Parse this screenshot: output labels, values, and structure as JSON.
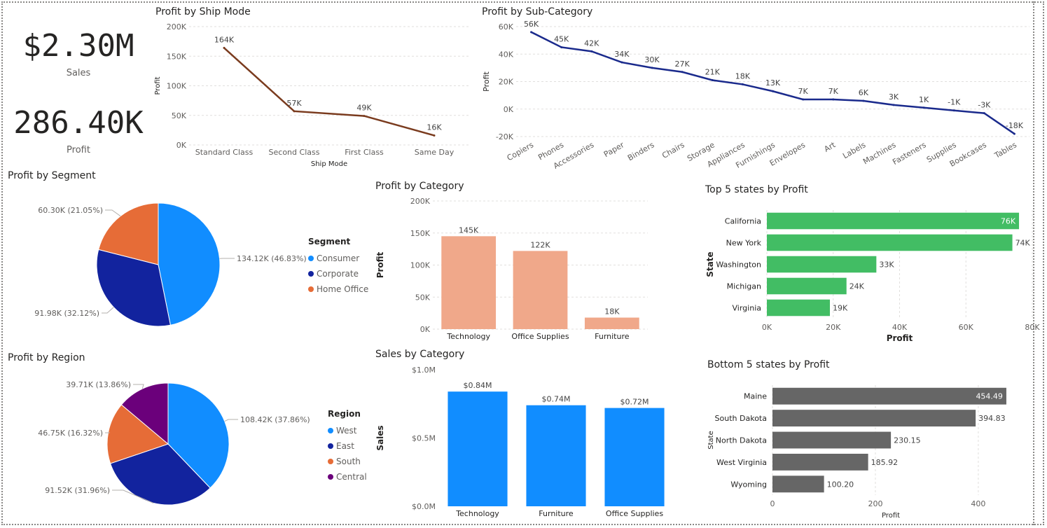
{
  "kpis": {
    "sales_value": "$2.30M",
    "sales_label": "Sales",
    "profit_value": "286.40K",
    "profit_label": "Profit"
  },
  "titles": {
    "ship_mode": "Profit by Ship Mode",
    "sub_category": "Profit by Sub-Category",
    "segment": "Profit by Segment",
    "category": "Profit by Category",
    "top5": "Top 5 states by Profit",
    "region": "Profit by Region",
    "sales_category": "Sales by Category",
    "bottom5": "Bottom 5 states by Profit"
  },
  "colors": {
    "ship_line": "#7a3b1e",
    "sub_line": "#1a2a8c",
    "category_bar": "#f0a88a",
    "top5_bar": "#42bd64",
    "sales_bar": "#118dff",
    "bottom5_bar": "#666666",
    "consumer": "#118dff",
    "corporate": "#12239e",
    "home_office": "#e66c37",
    "west": "#118dff",
    "east": "#12239e",
    "south": "#e66c37",
    "central": "#6b007b"
  },
  "chart_data": [
    {
      "id": "ship_mode",
      "type": "line",
      "xlabel": "Ship Mode",
      "ylabel": "Profit",
      "categories": [
        "Standard Class",
        "Second Class",
        "First Class",
        "Same Day"
      ],
      "values": [
        164000,
        57000,
        49000,
        16000
      ],
      "labels": [
        "164K",
        "57K",
        "49K",
        "16K"
      ],
      "ylim": [
        0,
        200000
      ],
      "yticks": [
        "0K",
        "50K",
        "100K",
        "150K",
        "200K"
      ]
    },
    {
      "id": "sub_category",
      "type": "line",
      "xlabel": "",
      "ylabel": "Profit",
      "categories": [
        "Copiers",
        "Phones",
        "Accessories",
        "Paper",
        "Binders",
        "Chairs",
        "Storage",
        "Appliances",
        "Furnishings",
        "Envelopes",
        "Art",
        "Labels",
        "Machines",
        "Fasteners",
        "Supplies",
        "Bookcases",
        "Tables"
      ],
      "values": [
        56000,
        45000,
        42000,
        34000,
        30000,
        27000,
        21000,
        18000,
        13000,
        7000,
        7000,
        6000,
        3000,
        1000,
        -1000,
        -3000,
        -18000
      ],
      "labels": [
        "56K",
        "45K",
        "42K",
        "34K",
        "30K",
        "27K",
        "21K",
        "18K",
        "13K",
        "7K",
        "7K",
        "6K",
        "3K",
        "1K",
        "-1K",
        "-3K",
        "-18K"
      ],
      "ylim": [
        -20000,
        60000
      ],
      "yticks": [
        "-20K",
        "0K",
        "20K",
        "40K",
        "60K"
      ]
    },
    {
      "id": "segment",
      "type": "pie",
      "legend_title": "Segment",
      "slices": [
        {
          "name": "Consumer",
          "value": 134120,
          "label": "134.12K (46.83%)"
        },
        {
          "name": "Corporate",
          "value": 91980,
          "label": "91.98K (32.12%)"
        },
        {
          "name": "Home Office",
          "value": 60300,
          "label": "60.30K (21.05%)"
        }
      ]
    },
    {
      "id": "category",
      "type": "bar",
      "ylabel": "Profit",
      "categories": [
        "Technology",
        "Office Supplies",
        "Furniture"
      ],
      "values": [
        145000,
        122000,
        18000
      ],
      "labels": [
        "145K",
        "122K",
        "18K"
      ],
      "ylim": [
        0,
        200000
      ],
      "yticks": [
        "0K",
        "50K",
        "100K",
        "150K",
        "200K"
      ]
    },
    {
      "id": "top5",
      "type": "bar",
      "orientation": "horizontal",
      "xlabel": "Profit",
      "ylabel": "State",
      "categories": [
        "California",
        "New York",
        "Washington",
        "Michigan",
        "Virginia"
      ],
      "values": [
        76000,
        74000,
        33000,
        24000,
        19000
      ],
      "labels": [
        "76K",
        "74K",
        "33K",
        "24K",
        "19K"
      ],
      "xlim": [
        0,
        80000
      ],
      "xticks": [
        "0K",
        "20K",
        "40K",
        "60K",
        "80K"
      ]
    },
    {
      "id": "region",
      "type": "pie",
      "legend_title": "Region",
      "slices": [
        {
          "name": "West",
          "value": 108420,
          "label": "108.42K (37.86%)"
        },
        {
          "name": "East",
          "value": 91520,
          "label": "91.52K (31.96%)"
        },
        {
          "name": "South",
          "value": 46750,
          "label": "46.75K (16.32%)"
        },
        {
          "name": "Central",
          "value": 39710,
          "label": "39.71K (13.86%)"
        }
      ]
    },
    {
      "id": "sales_category",
      "type": "bar",
      "ylabel": "Sales",
      "categories": [
        "Technology",
        "Furniture",
        "Office Supplies"
      ],
      "values": [
        840000,
        740000,
        720000
      ],
      "labels": [
        "$0.84M",
        "$0.74M",
        "$0.72M"
      ],
      "ylim": [
        0,
        1000000
      ],
      "yticks": [
        "$0.0M",
        "$0.5M",
        "$1.0M"
      ]
    },
    {
      "id": "bottom5",
      "type": "bar",
      "orientation": "horizontal",
      "xlabel": "Profit",
      "ylabel": "State",
      "categories": [
        "Maine",
        "South Dakota",
        "North Dakota",
        "West Virginia",
        "Wyoming"
      ],
      "values": [
        454.49,
        394.83,
        230.15,
        185.92,
        100.2
      ],
      "labels": [
        "454.49",
        "394.83",
        "230.15",
        "185.92",
        "100.20"
      ],
      "xlim": [
        0,
        460
      ],
      "xticks": [
        "0",
        "200",
        "400"
      ],
      "xtick_values": [
        0,
        200,
        400
      ]
    }
  ]
}
